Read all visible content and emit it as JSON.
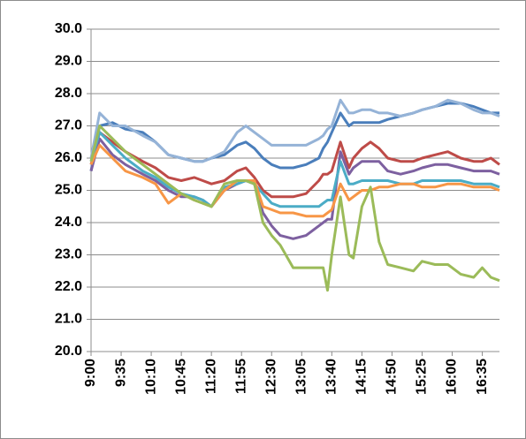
{
  "chart_data": {
    "type": "line",
    "x": [
      "9:00",
      "9:10",
      "9:25",
      "9:40",
      "10:00",
      "10:15",
      "10:30",
      "10:45",
      "11:00",
      "11:10",
      "11:20",
      "11:35",
      "11:50",
      "12:00",
      "12:10",
      "12:20",
      "12:30",
      "12:40",
      "12:55",
      "13:10",
      "13:25",
      "13:30",
      "13:35",
      "13:40",
      "13:50",
      "14:00",
      "14:05",
      "14:15",
      "14:25",
      "14:35",
      "14:45",
      "15:00",
      "15:15",
      "15:25",
      "15:40",
      "15:55",
      "16:10",
      "16:25",
      "16:35",
      "16:45",
      "16:55"
    ],
    "xlim": [
      "9:00",
      "16:55"
    ],
    "xticks": [
      "9:00",
      "9:35",
      "10:10",
      "10:45",
      "11:20",
      "11:55",
      "12:30",
      "13:05",
      "13:40",
      "14:15",
      "14:50",
      "15:25",
      "16:00",
      "16:35"
    ],
    "ylim": [
      20,
      30
    ],
    "yticks": [
      {
        "value": 20,
        "label": "20.0"
      },
      {
        "value": 21,
        "label": "21.0"
      },
      {
        "value": 22,
        "label": "22.0"
      },
      {
        "value": 23,
        "label": "23.0"
      },
      {
        "value": 24,
        "label": "24.0"
      },
      {
        "value": 25,
        "label": "25.0"
      },
      {
        "value": 26,
        "label": "26.0"
      },
      {
        "value": 27,
        "label": "27.0"
      },
      {
        "value": 28,
        "label": "28.0"
      },
      {
        "value": 29,
        "label": "29.0"
      },
      {
        "value": 30,
        "label": "30.0"
      }
    ],
    "grid": true,
    "series": [
      {
        "color": "#4a7ebb",
        "values": [
          25.6,
          27.0,
          27.1,
          26.9,
          26.8,
          26.5,
          26.1,
          26.0,
          25.9,
          25.9,
          26.0,
          26.1,
          26.4,
          26.5,
          26.3,
          26.0,
          25.8,
          25.7,
          25.7,
          25.8,
          26.0,
          26.3,
          26.5,
          26.8,
          27.4,
          27.0,
          27.1,
          27.1,
          27.1,
          27.1,
          27.2,
          27.3,
          27.4,
          27.5,
          27.6,
          27.7,
          27.7,
          27.6,
          27.5,
          27.4,
          27.4
        ]
      },
      {
        "color": "#95b3d7",
        "values": [
          26.0,
          27.4,
          27.0,
          27.0,
          26.7,
          26.5,
          26.1,
          26.0,
          25.9,
          25.9,
          26.0,
          26.2,
          26.8,
          27.0,
          26.8,
          26.6,
          26.4,
          26.4,
          26.4,
          26.4,
          26.6,
          26.7,
          26.9,
          27.0,
          27.8,
          27.4,
          27.4,
          27.5,
          27.5,
          27.4,
          27.4,
          27.3,
          27.4,
          27.5,
          27.6,
          27.8,
          27.7,
          27.5,
          27.4,
          27.4,
          27.3
        ]
      },
      {
        "color": "#be4b48",
        "values": [
          25.8,
          26.8,
          26.5,
          26.2,
          25.9,
          25.7,
          25.4,
          25.3,
          25.4,
          25.3,
          25.2,
          25.3,
          25.6,
          25.7,
          25.4,
          25.0,
          24.8,
          24.8,
          24.8,
          24.9,
          25.3,
          25.5,
          25.5,
          25.6,
          26.5,
          25.7,
          26.0,
          26.3,
          26.5,
          26.3,
          26.0,
          25.9,
          25.9,
          26.0,
          26.1,
          26.2,
          26.0,
          25.9,
          25.9,
          26.0,
          25.8
        ]
      },
      {
        "color": "#7d60a0",
        "values": [
          25.6,
          26.6,
          26.1,
          25.8,
          25.5,
          25.3,
          25.0,
          24.8,
          24.8,
          24.7,
          24.5,
          25.0,
          25.2,
          25.3,
          25.2,
          24.3,
          23.9,
          23.6,
          23.5,
          23.6,
          23.9,
          24.0,
          24.1,
          24.1,
          26.2,
          25.5,
          25.7,
          25.9,
          25.9,
          25.9,
          25.6,
          25.5,
          25.6,
          25.7,
          25.8,
          25.8,
          25.7,
          25.6,
          25.6,
          25.6,
          25.5
        ]
      },
      {
        "color": "#4bacc6",
        "values": [
          25.9,
          26.8,
          26.4,
          26.0,
          25.6,
          25.4,
          25.1,
          24.9,
          24.8,
          24.7,
          24.5,
          25.1,
          25.2,
          25.3,
          25.2,
          24.9,
          24.6,
          24.5,
          24.5,
          24.5,
          24.5,
          24.6,
          24.7,
          24.7,
          25.9,
          25.2,
          25.2,
          25.3,
          25.3,
          25.3,
          25.3,
          25.2,
          25.2,
          25.3,
          25.3,
          25.3,
          25.3,
          25.2,
          25.2,
          25.2,
          25.1
        ]
      },
      {
        "color": "#f79646",
        "values": [
          25.8,
          26.4,
          26.0,
          25.6,
          25.4,
          25.2,
          24.6,
          24.9,
          24.7,
          24.6,
          24.5,
          25.0,
          25.3,
          25.3,
          25.3,
          24.5,
          24.4,
          24.3,
          24.3,
          24.2,
          24.2,
          24.2,
          24.3,
          24.4,
          25.2,
          24.7,
          24.8,
          25.0,
          25.0,
          25.1,
          25.1,
          25.2,
          25.2,
          25.1,
          25.1,
          25.2,
          25.2,
          25.1,
          25.1,
          25.1,
          25.0
        ]
      },
      {
        "color": "#9bbb59",
        "values": [
          25.9,
          27.0,
          26.6,
          26.2,
          25.8,
          25.5,
          25.2,
          24.9,
          24.7,
          24.6,
          24.5,
          25.2,
          25.3,
          25.3,
          25.2,
          24.0,
          23.6,
          23.3,
          22.6,
          22.6,
          22.6,
          22.6,
          21.9,
          23.0,
          24.8,
          23.0,
          22.9,
          24.5,
          25.1,
          23.4,
          22.7,
          22.6,
          22.5,
          22.8,
          22.7,
          22.7,
          22.4,
          22.3,
          22.6,
          22.3,
          22.2
        ]
      }
    ]
  }
}
